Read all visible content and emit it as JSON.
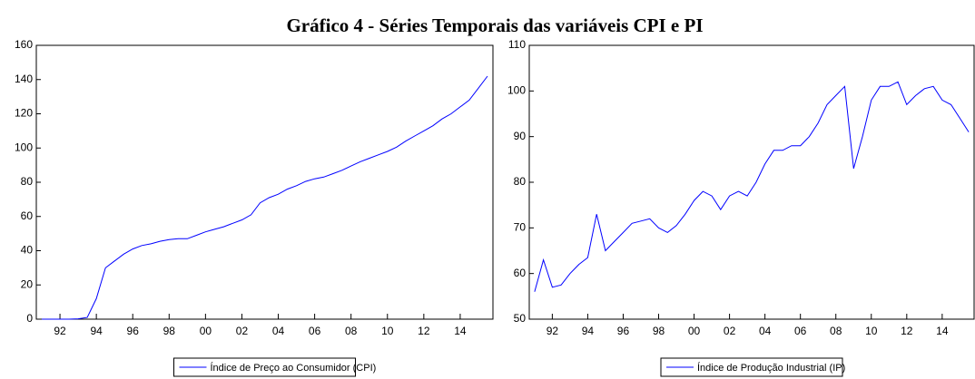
{
  "title": "Gráfico 4 - Séries Temporais das variáveis CPI e PI",
  "chart_data": [
    {
      "type": "line",
      "x": [
        1991.0,
        1991.5,
        1992.0,
        1992.5,
        1993.0,
        1993.5,
        1994.0,
        1994.5,
        1995.0,
        1995.5,
        1996.0,
        1996.5,
        1997.0,
        1997.5,
        1998.0,
        1998.5,
        1999.0,
        1999.5,
        2000.0,
        2000.5,
        2001.0,
        2001.5,
        2002.0,
        2002.5,
        2003.0,
        2003.5,
        2004.0,
        2004.5,
        2005.0,
        2005.5,
        2006.0,
        2006.5,
        2007.0,
        2007.5,
        2008.0,
        2008.5,
        2009.0,
        2009.5,
        2010.0,
        2010.5,
        2011.0,
        2011.5,
        2012.0,
        2012.5,
        2013.0,
        2013.5,
        2014.0,
        2014.5,
        2015.0,
        2015.5
      ],
      "series": [
        {
          "name": "Índice de Preço ao Consumidor (CPI)",
          "color": "#0000ff",
          "values": [
            0,
            0,
            0,
            0,
            0.2,
            1,
            12,
            30,
            34,
            38,
            41,
            43,
            44,
            45.5,
            46.5,
            47,
            47,
            49,
            51,
            52.5,
            54,
            56,
            58,
            61,
            68,
            71,
            73,
            76,
            78,
            80.5,
            82,
            83,
            85,
            87,
            89.5,
            92,
            94,
            96,
            98,
            100.5,
            104,
            107,
            110,
            113,
            117,
            120,
            124,
            128,
            135,
            142
          ]
        }
      ],
      "xlim": [
        1990.7,
        2015.8
      ],
      "xticks": [
        {
          "value": 1992,
          "label": "92"
        },
        {
          "value": 1994,
          "label": "94"
        },
        {
          "value": 1996,
          "label": "96"
        },
        {
          "value": 1998,
          "label": "98"
        },
        {
          "value": 2000,
          "label": "00"
        },
        {
          "value": 2002,
          "label": "02"
        },
        {
          "value": 2004,
          "label": "04"
        },
        {
          "value": 2006,
          "label": "06"
        },
        {
          "value": 2008,
          "label": "08"
        },
        {
          "value": 2010,
          "label": "10"
        },
        {
          "value": 2012,
          "label": "12"
        },
        {
          "value": 2014,
          "label": "14"
        }
      ],
      "ylim": [
        0,
        160
      ],
      "yticks": [
        0,
        20,
        40,
        60,
        80,
        100,
        120,
        140,
        160
      ]
    },
    {
      "type": "line",
      "x": [
        1991.0,
        1991.5,
        1992.0,
        1992.5,
        1993.0,
        1993.5,
        1994.0,
        1994.5,
        1995.0,
        1995.5,
        1996.0,
        1996.5,
        1997.0,
        1997.5,
        1998.0,
        1998.5,
        1999.0,
        1999.5,
        2000.0,
        2000.5,
        2001.0,
        2001.5,
        2002.0,
        2002.5,
        2003.0,
        2003.5,
        2004.0,
        2004.5,
        2005.0,
        2005.5,
        2006.0,
        2006.5,
        2007.0,
        2007.5,
        2008.0,
        2008.5,
        2009.0,
        2009.5,
        2010.0,
        2010.5,
        2011.0,
        2011.5,
        2012.0,
        2012.5,
        2013.0,
        2013.5,
        2014.0,
        2014.5,
        2015.0,
        2015.5
      ],
      "series": [
        {
          "name": "Índice de Produção Industrial (IP)",
          "color": "#0000ff",
          "values": [
            56,
            63,
            57,
            57.5,
            60,
            62,
            63.5,
            73,
            65,
            67,
            69,
            71,
            71.5,
            72,
            70,
            69,
            70.5,
            73,
            76,
            78,
            77,
            74,
            77,
            78,
            77,
            80,
            84,
            87,
            87,
            88,
            88,
            90,
            93,
            97,
            99,
            101,
            83,
            90,
            98,
            101,
            101,
            102,
            97,
            99,
            100.5,
            101,
            98,
            97,
            94,
            91
          ]
        }
      ],
      "xlim": [
        1990.7,
        2015.8
      ],
      "xticks": [
        {
          "value": 1992,
          "label": "92"
        },
        {
          "value": 1994,
          "label": "94"
        },
        {
          "value": 1996,
          "label": "96"
        },
        {
          "value": 1998,
          "label": "98"
        },
        {
          "value": 2000,
          "label": "00"
        },
        {
          "value": 2002,
          "label": "02"
        },
        {
          "value": 2004,
          "label": "04"
        },
        {
          "value": 2006,
          "label": "06"
        },
        {
          "value": 2008,
          "label": "08"
        },
        {
          "value": 2010,
          "label": "10"
        },
        {
          "value": 2012,
          "label": "12"
        },
        {
          "value": 2014,
          "label": "14"
        }
      ],
      "ylim": [
        50,
        110
      ],
      "yticks": [
        50,
        60,
        70,
        80,
        90,
        100,
        110
      ]
    }
  ]
}
